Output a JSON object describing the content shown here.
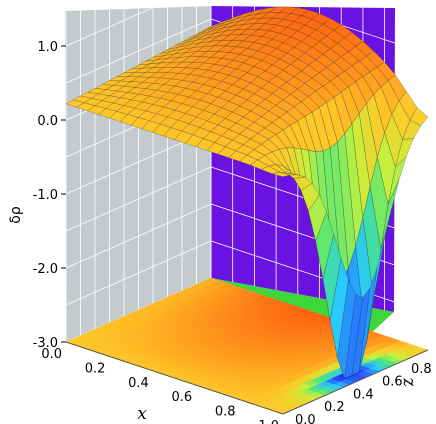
{
  "chart_data": {
    "type": "surface3d",
    "xlabel": "x",
    "ylabel": "z",
    "zlabel": "δρ",
    "xlim": [
      0.0,
      1.0
    ],
    "ylim": [
      0.0,
      1.0
    ],
    "zlim": [
      -3.0,
      1.5
    ],
    "x_ticks": [
      "0.0",
      "0.2",
      "0.4",
      "0.6",
      "0.8",
      "1.0"
    ],
    "y_ticks": [
      "0.0",
      "0.2",
      "0.4",
      "0.6",
      "0.8",
      "1.0"
    ],
    "z_ticks": [
      "1.0",
      "0.0",
      "-1.0",
      "-2.0",
      "-3.0"
    ],
    "grid": true,
    "colormap": "rainbow",
    "back_wall_left_color": "#c5cbcc",
    "back_wall_right_color": "#6a12e2",
    "floor_color": "#3fd63b",
    "mesh_color": "#1e3a2a",
    "surface_description_points": [
      {
        "x": 0.0,
        "y": 1.0,
        "value": 0.5
      },
      {
        "x": 0.5,
        "y": 1.0,
        "value": 1.3
      },
      {
        "x": 0.7,
        "y": 0.7,
        "value": 0.5
      },
      {
        "x": 1.0,
        "y": 0.0,
        "value": 0.4
      },
      {
        "x": 0.95,
        "y": 0.55,
        "value": -3.0
      }
    ]
  }
}
